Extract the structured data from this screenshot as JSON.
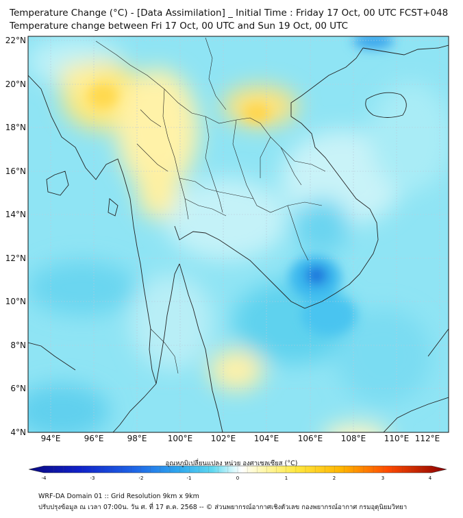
{
  "header": {
    "title_line1": "Temperature Change (°C) - [Data Assimilation] _ Initial Time : Friday 17 Oct, 00 UTC FCST+048",
    "title_line2": "Temperature change between Fri 17 Oct, 00 UTC and Sun 19 Oct, 00 UTC"
  },
  "map": {
    "lat_labels": [
      "22°N",
      "20°N",
      "18°N",
      "16°N",
      "14°N",
      "12°N",
      "10°N",
      "8°N",
      "6°N",
      "4°N"
    ],
    "lon_labels": [
      "94°E",
      "96°E",
      "98°E",
      "100°E",
      "102°E",
      "104°E",
      "106°E",
      "108°E",
      "110°E",
      "112°E"
    ],
    "colors": {
      "land_border": "#222222",
      "grid": "#b9c9d9"
    }
  },
  "colorbar": {
    "title": "อุณหภูมิเปลี่ยนแปลง หน่วย องศาเซลเซียส (°C)",
    "ticks": [
      "-4",
      "-3",
      "-2",
      "-1",
      "0",
      "1",
      "2",
      "3",
      "4"
    ],
    "colors": [
      "#0a0a80",
      "#1020c8",
      "#1e64e6",
      "#2fa8ee",
      "#5fd8f0",
      "#b4f0f8",
      "#ffffff",
      "#fff8b0",
      "#ffe840",
      "#ffb400",
      "#ff6a00",
      "#e81400",
      "#8a0000"
    ]
  },
  "footer": {
    "line1": "WRF-DA Domain 01 :: Grid Resolution 9km x 9km",
    "line2": "ปรับปรุงข้อมูล ณ เวลา 07:00น. วัน ศ. ที่ 17 ต.ค. 2568 -- © ส่วนพยากรณ์อากาศเชิงตัวเลข กองพยากรณ์อากาศ กรมอุตุนิยมวิทยา"
  }
}
